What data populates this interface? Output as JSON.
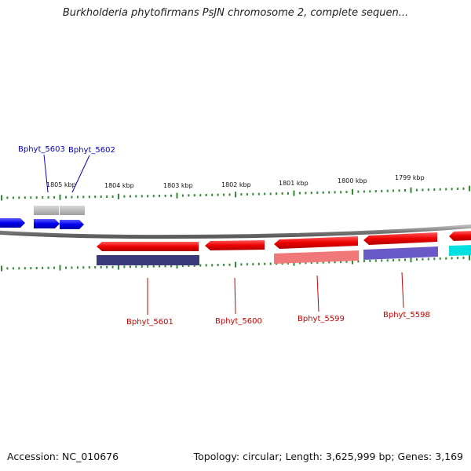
{
  "title": "Burkholderia phytofirmans PsJN chromosome 2, complete sequen...",
  "footer": {
    "accession": "Accession: NC_010676",
    "summary": "Topology: circular; Length: 3,625,999 bp; Genes: 3,169"
  },
  "scale": {
    "tick_labels": [
      "1805 kbp",
      "1804 kbp",
      "1803 kbp",
      "1802 kbp",
      "1801 kbp",
      "1800 kbp",
      "1799 kbp"
    ]
  },
  "genes_top": [
    {
      "label": "Bphyt_5603",
      "color": "#0000cc"
    },
    {
      "label": "Bphyt_5602",
      "color": "#0000cc"
    }
  ],
  "genes_bottom": [
    {
      "label": "Bphyt_5601",
      "color": "#cc0000"
    },
    {
      "label": "Bphyt_5600",
      "color": "#cc0000"
    },
    {
      "label": "Bphyt_5599",
      "color": "#cc0000"
    },
    {
      "label": "Bphyt_5598",
      "color": "#cc0000"
    }
  ],
  "colors": {
    "backbone": "#8a8a8a",
    "tick": "#2e8b2e",
    "forward_gene": "#0000ee",
    "reverse_gene": "#ee0000",
    "cds_gray": "#b0b0b0",
    "cds_dark_blue": "#3a3a7a",
    "cds_pink": "#f07878",
    "cds_purple": "#6a5ac8",
    "cds_cyan": "#00e0e0"
  }
}
